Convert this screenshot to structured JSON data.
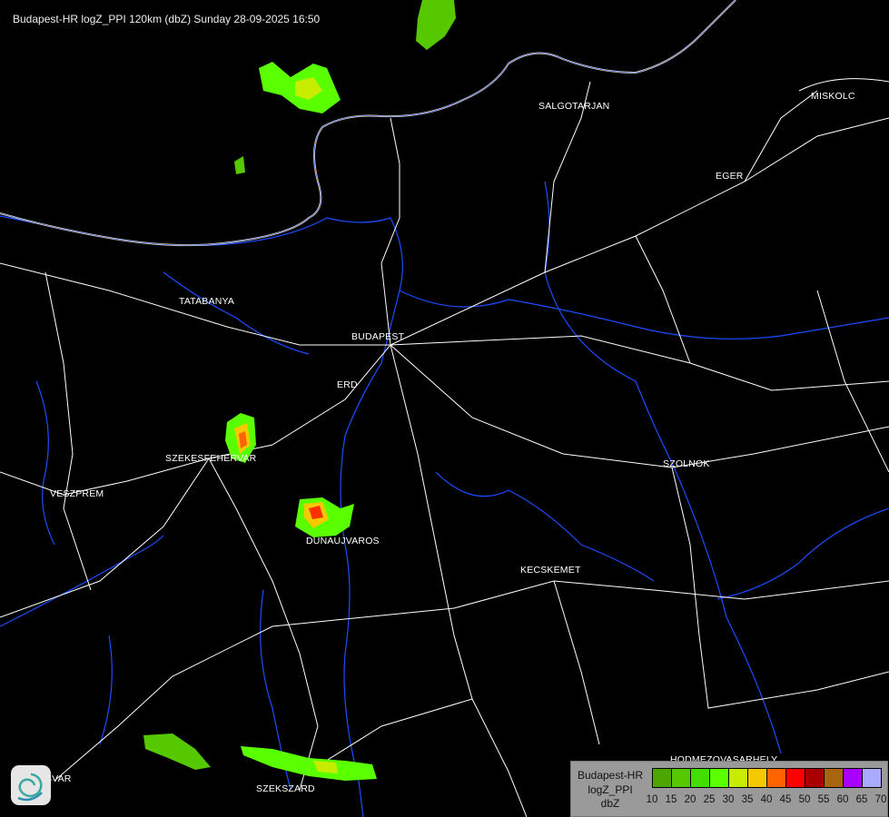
{
  "title": "Budapest-HR logZ_PPI 120km (dbZ) Sunday 28-09-2025 16:50",
  "cities": [
    {
      "name": "SALGOTARJAN"
    },
    {
      "name": "EGER"
    },
    {
      "name": "MISKOLC"
    },
    {
      "name": "TATABANYA"
    },
    {
      "name": "BUDAPEST"
    },
    {
      "name": "ERD"
    },
    {
      "name": "SZEKESFEHERVAR"
    },
    {
      "name": "VESZPREM"
    },
    {
      "name": "DUNAUJVAROS"
    },
    {
      "name": "KECSKEMET"
    },
    {
      "name": "SZOLNOK"
    },
    {
      "name": "HODMEZOVASARHELY"
    },
    {
      "name": "SZEKSZARD"
    },
    {
      "name": "KAPOSVAR"
    }
  ],
  "legend": {
    "line1": "Budapest-HR",
    "line2": "logZ_PPI",
    "line3": "dbZ",
    "ticks": [
      "10",
      "15",
      "20",
      "25",
      "30",
      "35",
      "40",
      "45",
      "50",
      "55",
      "60",
      "65",
      "70"
    ],
    "colors": [
      "#4ca600",
      "#55c800",
      "#44dd00",
      "#5aff00",
      "#c8ec00",
      "#f5c800",
      "#ff6400",
      "#ff0000",
      "#a80000",
      "#a8640e",
      "#a800ff",
      "#aaaaff"
    ]
  },
  "colors": {
    "background": "#000000",
    "roads": "#ffffff",
    "rivers": "#2050ff",
    "border": "#f0d8a0"
  },
  "logo": "weather-service-swirl-logo"
}
